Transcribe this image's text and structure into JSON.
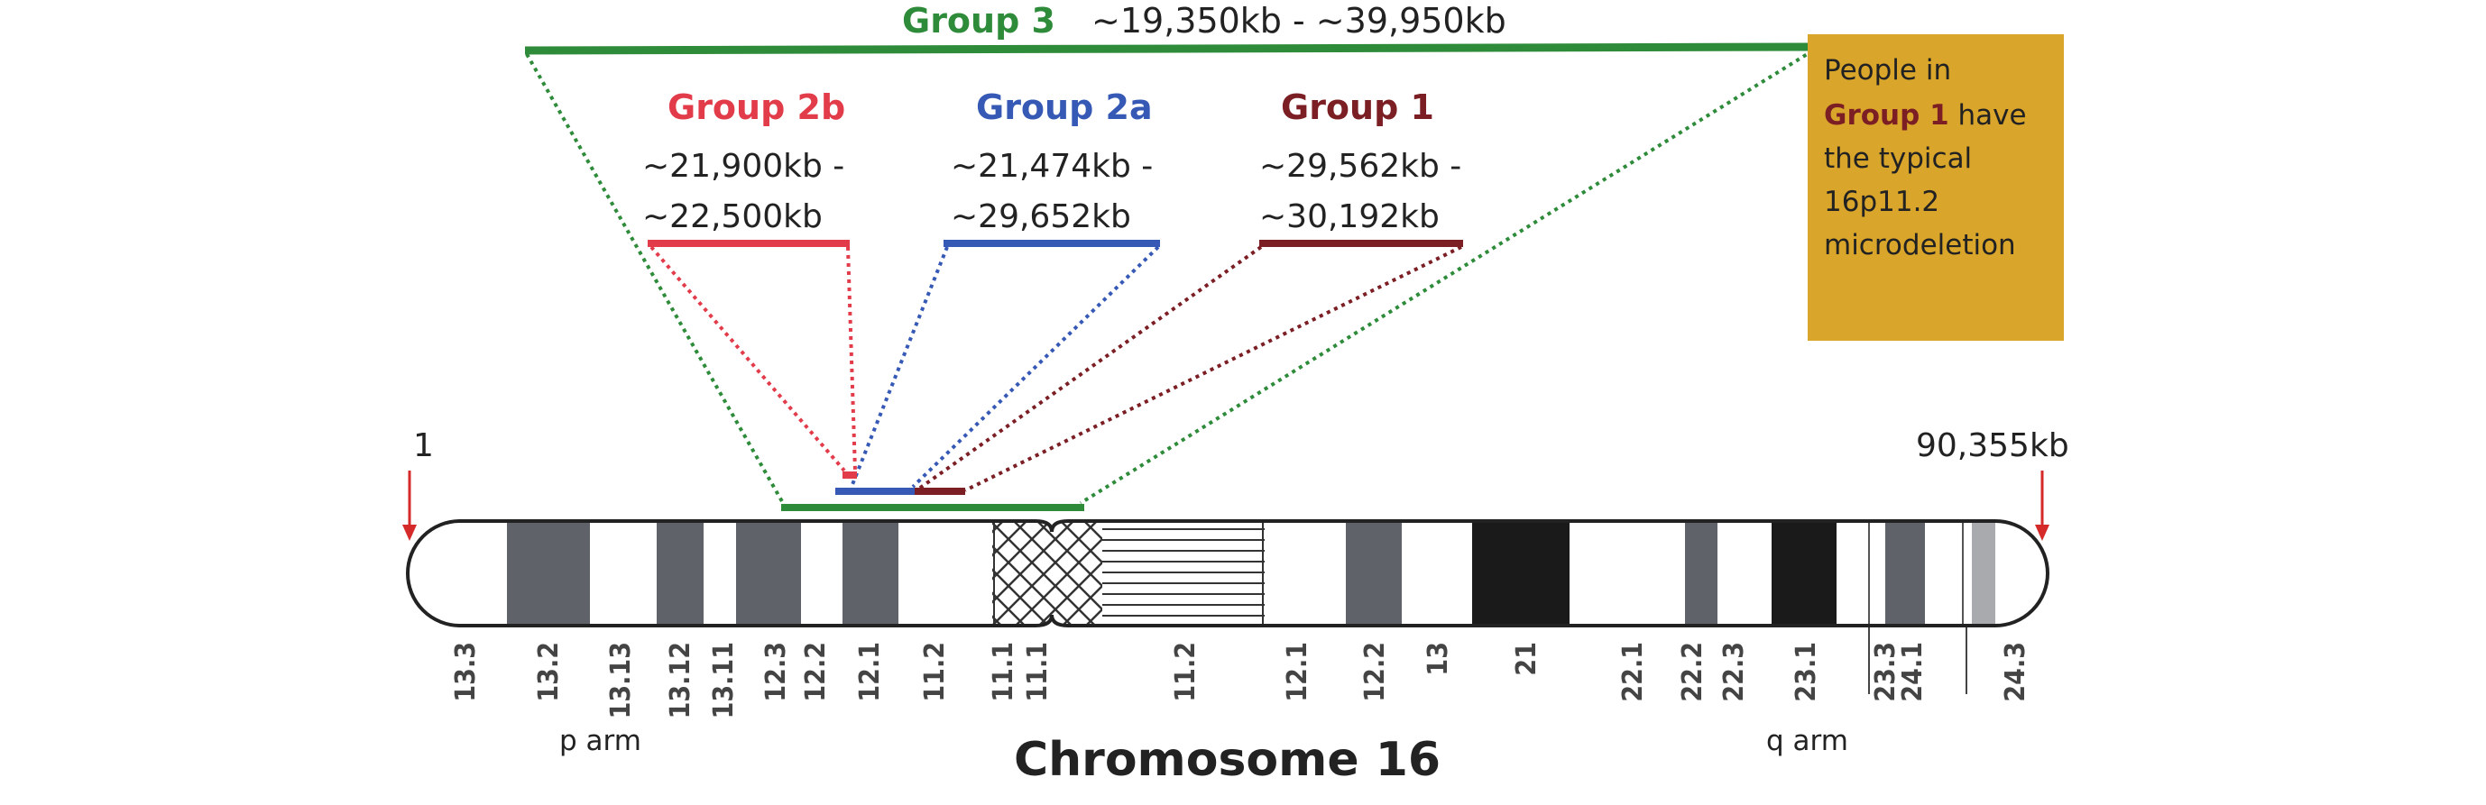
{
  "colors": {
    "group3": "#2e8b3a",
    "group2b": "#e23b4a",
    "group2a": "#3559b5",
    "group1": "#7b1f25",
    "note_bg": "#d9a52a",
    "chrom_dark": "#1a1a1a",
    "chrom_mid": "#5f6268",
    "text": "#222222"
  },
  "groups": {
    "group3": {
      "name": "Group 3",
      "range": "~19,350kb - ~39,950kb"
    },
    "group2b": {
      "name": "Group 2b",
      "range_line1": "~21,900kb -",
      "range_line2": "~22,500kb"
    },
    "group2a": {
      "name": "Group 2a",
      "range_line1": "~21,474kb -",
      "range_line2": "~29,652kb"
    },
    "group1": {
      "name": "Group 1",
      "range_line1": "~29,562kb -",
      "range_line2": "~30,192kb"
    }
  },
  "note": {
    "line1": "People in",
    "highlight": "Group 1",
    "line2_rest": " have",
    "line3": "the typical",
    "line4": "16p11.2",
    "line5": "microdeletion"
  },
  "markers": {
    "start": "1",
    "end": "90,355kb"
  },
  "chromosome": {
    "title": "Chromosome 16",
    "p_arm": "p arm",
    "q_arm": "q arm",
    "bands": [
      "13.3",
      "13.2",
      "13.13",
      "13.12",
      "13.11",
      "12.3",
      "12.2",
      "12.1",
      "11.2",
      "11.1",
      "11.1",
      "11.2",
      "12.1",
      "12.2",
      "13",
      "21",
      "22.1",
      "22.2",
      "22.3",
      "23.1",
      "23.3",
      "24.1",
      "24.3"
    ]
  }
}
